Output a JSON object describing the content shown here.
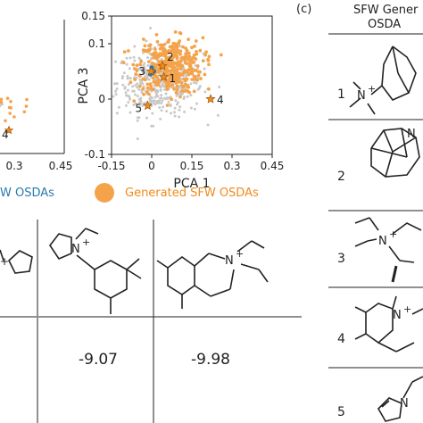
{
  "panel_c_label": "(c)",
  "panel_c_header_line1": "SFW Gener",
  "panel_c_header_line2": "OSDA",
  "row_numbers": [
    "1",
    "2",
    "3",
    "4",
    "5"
  ],
  "legend": {
    "known_label": "W OSDAs",
    "generated_label": "Generated SFW OSDAs"
  },
  "energies": [
    "-9.07",
    "-9.98"
  ],
  "colors": {
    "background_points": "#c9c9c9",
    "generated": "#f5a34a",
    "known": "#2a7ab0",
    "axis": "#222222",
    "known_text": "#2a7ab0",
    "generated_text": "#f08a1c"
  },
  "chart_data": [
    {
      "type": "scatter",
      "title": "",
      "xlabel": "PCA 1",
      "ylabel": "PCA 3",
      "xlim": [
        -0.15,
        0.45
      ],
      "ylim": [
        -0.1,
        0.15
      ],
      "xticks": [
        "-0.15",
        "0",
        "0.15",
        "0.3",
        "0.45"
      ],
      "yticks": [
        "-0.1",
        "0",
        "0.1",
        "0.15"
      ],
      "series": [
        {
          "name": "",
          "color": "#c9c9c9",
          "center": [
            0.03,
            0.03
          ],
          "spread": [
            0.08,
            0.03
          ]
        },
        {
          "name": "Generated SFW OSDAs",
          "color": "#f5a34a",
          "center": [
            0.07,
            0.06
          ],
          "spread": [
            0.06,
            0.025
          ]
        },
        {
          "name": "W OSDAs",
          "color": "#2a7ab0",
          "points": [
            [
              0.0,
              0.057
            ],
            [
              -0.005,
              0.045
            ],
            [
              0.008,
              0.05
            ]
          ]
        }
      ],
      "highlighted": [
        {
          "label": "1",
          "x": 0.045,
          "y": 0.04
        },
        {
          "label": "2",
          "x": 0.04,
          "y": 0.06
        },
        {
          "label": "3",
          "x": -0.002,
          "y": 0.05
        },
        {
          "label": "4",
          "x": 0.22,
          "y": 0.0
        },
        {
          "label": "5",
          "x": -0.015,
          "y": -0.012
        }
      ],
      "grid": false
    },
    {
      "type": "scatter",
      "title": "",
      "xlabel": "",
      "ylabel": "",
      "xlim": [
        0.15,
        0.45
      ],
      "ylim": [
        -0.1,
        0.15
      ],
      "xticks": [
        "0.3",
        "0.45"
      ],
      "series": [
        {
          "name": "",
          "color": "#c9c9c9",
          "center": [
            0.15,
            0.02
          ],
          "spread": [
            0.05,
            0.03
          ]
        },
        {
          "name": "Generated SFW OSDAs",
          "color": "#f5a34a",
          "center": [
            0.2,
            0.01
          ],
          "spread": [
            0.05,
            0.03
          ]
        }
      ],
      "highlighted": [
        {
          "label": "4",
          "x": 0.22,
          "y": -0.01
        }
      ],
      "grid": false
    }
  ]
}
